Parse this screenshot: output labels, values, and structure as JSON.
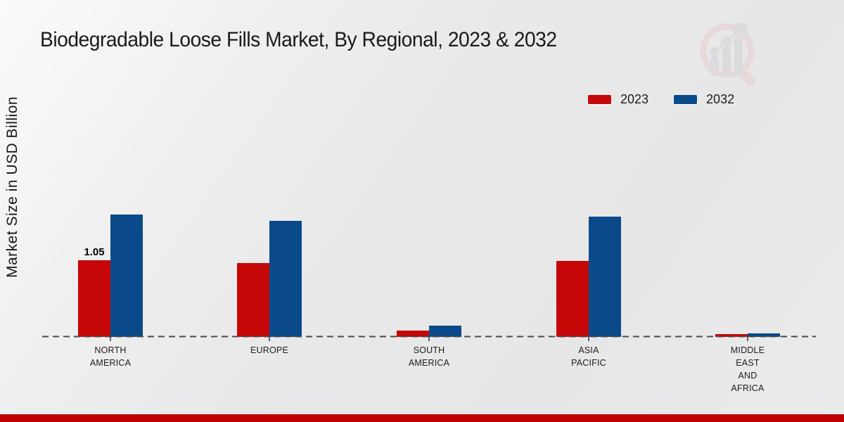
{
  "page": {
    "title": "Biodegradable Loose Fills Market, By Regional, 2023 & 2032"
  },
  "axes": {
    "y_label": "Market Size in USD Billion"
  },
  "legend": {
    "position": "top-right",
    "items": [
      {
        "label": "2023",
        "color": "#c50708"
      },
      {
        "label": "2032",
        "color": "#0b4a8a"
      }
    ]
  },
  "chart_data": {
    "type": "bar",
    "title": "Biodegradable Loose Fills Market, By Regional, 2023 & 2032",
    "xlabel": "",
    "ylabel": "Market Size in USD Billion",
    "grid": false,
    "baseline_style": "dashed",
    "legend_position": "top-right",
    "categories": [
      "NORTH AMERICA",
      "EUROPE",
      "SOUTH AMERICA",
      "ASIA PACIFIC",
      "MIDDLE EAST AND AFRICA"
    ],
    "category_label_lines": [
      [
        "NORTH",
        "AMERICA"
      ],
      [
        "EUROPE"
      ],
      [
        "SOUTH",
        "AMERICA"
      ],
      [
        "ASIA",
        "PACIFIC"
      ],
      [
        "MIDDLE",
        "EAST",
        "AND",
        "AFRICA"
      ]
    ],
    "series": [
      {
        "name": "2023",
        "color": "#c50708",
        "values": [
          1.05,
          1.01,
          0.09,
          1.04,
          0.04
        ]
      },
      {
        "name": "2032",
        "color": "#0b4a8a",
        "values": [
          1.67,
          1.59,
          0.15,
          1.64,
          0.05
        ]
      }
    ],
    "annotations": [
      {
        "category_index": 0,
        "series_index": 0,
        "text": "1.05"
      }
    ],
    "ylim": [
      0,
      2
    ]
  },
  "branding": {
    "logo_icon": "magnifier-bar-chart-logo",
    "ring_color": "#e5c6c9",
    "bar_color": "#cfcfd4"
  },
  "footer": {
    "band_color": "#be0101"
  }
}
